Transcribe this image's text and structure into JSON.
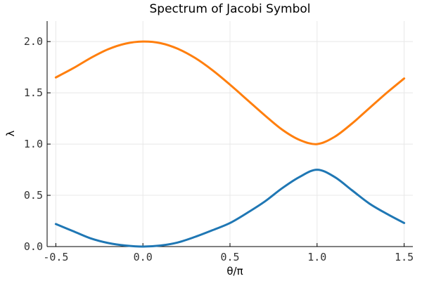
{
  "chart_data": {
    "type": "line",
    "title": "Spectrum of Jacobi Symbol",
    "xlabel": "θ/π",
    "ylabel": "λ",
    "xlim": [
      -0.55,
      1.55
    ],
    "ylim": [
      0,
      2.2
    ],
    "xticks": [
      -0.5,
      0.0,
      0.5,
      1.0,
      1.5
    ],
    "xtick_labels": [
      "-0.5",
      "0.0",
      "0.5",
      "1.0",
      "1.5"
    ],
    "yticks": [
      0.0,
      0.5,
      1.0,
      1.5,
      2.0
    ],
    "ytick_labels": [
      "0.0",
      "0.5",
      "1.0",
      "1.5",
      "2.0"
    ],
    "grid": true,
    "legend": "none",
    "series": [
      {
        "color": "#1f77b4",
        "x": [
          -0.5,
          -0.4,
          -0.3,
          -0.2,
          -0.1,
          0.0,
          0.1,
          0.2,
          0.3,
          0.4,
          0.5,
          0.6,
          0.7,
          0.8,
          0.9,
          1.0,
          1.1,
          1.2,
          1.3,
          1.4,
          1.5
        ],
        "y": [
          0.22,
          0.15,
          0.08,
          0.035,
          0.01,
          0.0,
          0.01,
          0.04,
          0.095,
          0.16,
          0.23,
          0.33,
          0.44,
          0.57,
          0.68,
          0.75,
          0.68,
          0.55,
          0.42,
          0.32,
          0.23
        ]
      },
      {
        "color": "#ff7f0e",
        "x": [
          -0.5,
          -0.4,
          -0.3,
          -0.2,
          -0.1,
          0.0,
          0.1,
          0.2,
          0.3,
          0.4,
          0.5,
          0.6,
          0.7,
          0.8,
          0.9,
          1.0,
          1.1,
          1.2,
          1.3,
          1.4,
          1.5
        ],
        "y": [
          1.65,
          1.74,
          1.84,
          1.925,
          1.98,
          2.0,
          1.985,
          1.93,
          1.84,
          1.72,
          1.58,
          1.43,
          1.28,
          1.14,
          1.04,
          1.0,
          1.07,
          1.2,
          1.35,
          1.5,
          1.64
        ]
      }
    ]
  }
}
